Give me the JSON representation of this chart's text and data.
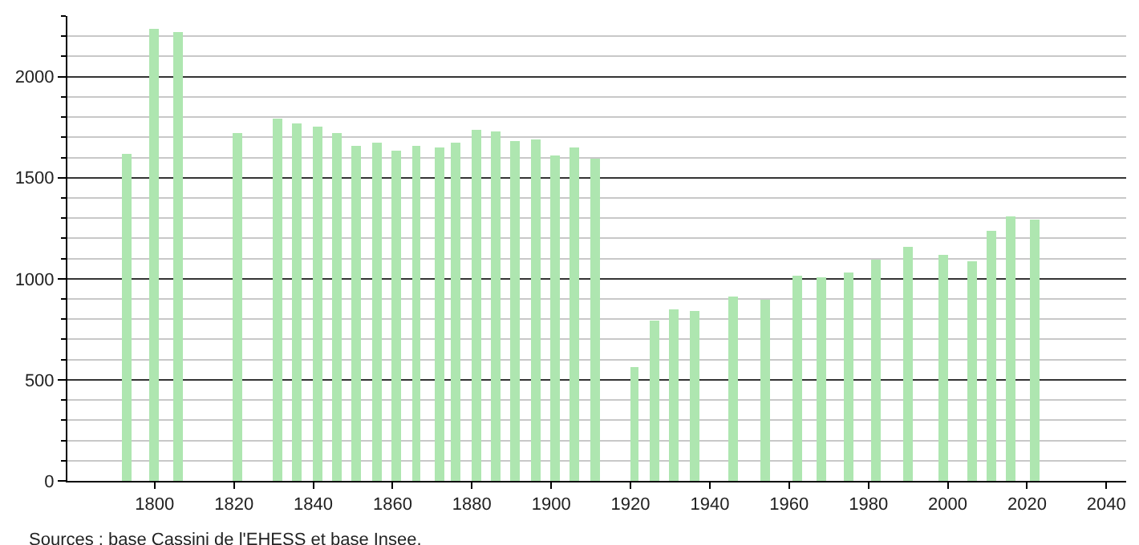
{
  "chart_data": {
    "type": "bar",
    "x": [
      1793,
      1800,
      1806,
      1821,
      1831,
      1836,
      1841,
      1846,
      1851,
      1856,
      1861,
      1866,
      1872,
      1876,
      1881,
      1886,
      1891,
      1896,
      1901,
      1906,
      1911,
      1921,
      1926,
      1931,
      1936,
      1946,
      1954,
      1962,
      1968,
      1975,
      1982,
      1990,
      1999,
      2006,
      2011,
      2016,
      2022
    ],
    "values": [
      1620,
      2240,
      2220,
      1720,
      1790,
      1770,
      1750,
      1720,
      1660,
      1675,
      1635,
      1660,
      1650,
      1675,
      1740,
      1730,
      1685,
      1690,
      1610,
      1650,
      1595,
      560,
      790,
      850,
      840,
      910,
      895,
      1015,
      1005,
      1030,
      1095,
      1160,
      1120,
      1090,
      1240,
      1310,
      1295
    ],
    "color": "#aee6b0",
    "xlim": [
      1778,
      2045
    ],
    "xticks": [
      1800,
      1820,
      1840,
      1860,
      1880,
      1900,
      1920,
      1940,
      1960,
      1980,
      2000,
      2020,
      2040
    ],
    "ylim": [
      0,
      2300
    ],
    "yticks": [
      0,
      {
        "value": 100,
        "label": null
      },
      {
        "value": 200,
        "label": null
      },
      {
        "value": 300,
        "label": null
      },
      {
        "value": 400,
        "label": null
      },
      500,
      {
        "value": 600,
        "label": null
      },
      {
        "value": 700,
        "label": null
      },
      {
        "value": 800,
        "label": null
      },
      {
        "value": 900,
        "label": null
      },
      1000,
      {
        "value": 1100,
        "label": null
      },
      {
        "value": 1200,
        "label": null
      },
      {
        "value": 1300,
        "label": null
      },
      {
        "value": 1400,
        "label": null
      },
      1500,
      {
        "value": 1600,
        "label": null
      },
      {
        "value": 1700,
        "label": null
      },
      {
        "value": 1800,
        "label": null
      },
      {
        "value": 1900,
        "label": null
      },
      2000,
      {
        "value": 2100,
        "label": null
      },
      {
        "value": 2200,
        "label": null
      },
      {
        "value": 2300,
        "label": null
      }
    ],
    "grid": "y",
    "annotations": [
      "Sources : base Cassini de l'EHESS et base Insee."
    ]
  }
}
